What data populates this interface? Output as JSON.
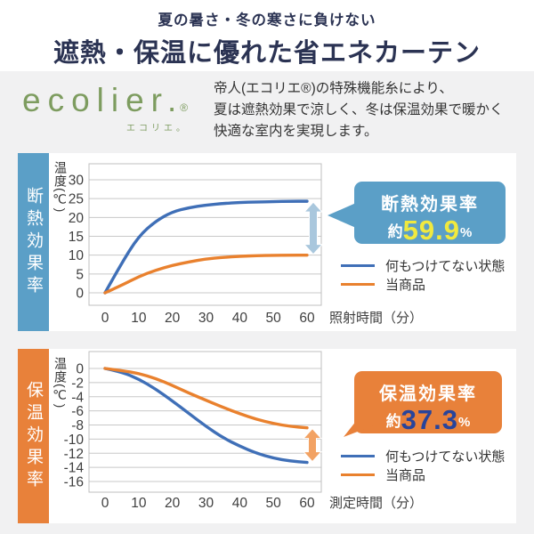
{
  "header": {
    "subtitle": "夏の暑さ・冬の寒さに負けない",
    "title": "遮熱・保温に優れた省エネカーテン"
  },
  "intro": {
    "logo_text": "ecolier.",
    "logo_reg": "®",
    "logo_sub": "エコリエ。",
    "description_lines": [
      "帝人(エコリエ®)の特殊機能糸により、",
      "夏は遮熱効果で涼しく、冬は保温効果で暖かく",
      "快適な室内を実現します。"
    ]
  },
  "insulation": {
    "banner": "断熱効果率",
    "callout": {
      "title": "断熱効果率",
      "prefix": "約",
      "value": "59.9",
      "unit": "%"
    }
  },
  "retention": {
    "banner": "保温効果率",
    "callout": {
      "title": "保温効果率",
      "prefix": "約",
      "value": "37.3",
      "unit": "%"
    }
  },
  "colors": {
    "page_bg": "#f1f1f2",
    "panel_bg": "#ffffff",
    "title_navy": "#2b3353",
    "text": "#333333",
    "logo_green": "#7d9c5f",
    "banner_blue": "#5b9fc7",
    "banner_orange": "#e8813a",
    "line_blue": "#3f6fb7",
    "line_orange": "#e9812e",
    "arrow_blue": "#a9c7dd",
    "arrow_orange": "#f2a263",
    "value_yellow": "#f0e93f",
    "value_navy": "#27449b",
    "grid": "#c8c8c8",
    "axis_text": "#3f3f3f"
  },
  "chart_data": [
    {
      "type": "line",
      "title": "断熱効果率",
      "xlabel": "照射時間（分）",
      "ylabel": "温度(℃)",
      "x": [
        0,
        5,
        10,
        15,
        20,
        25,
        30,
        35,
        40,
        45,
        50,
        55,
        60
      ],
      "xticks": [
        0,
        10,
        20,
        30,
        40,
        50,
        60
      ],
      "yticks": [
        30,
        25,
        20,
        15,
        10,
        5,
        0
      ],
      "ylim": [
        0,
        30
      ],
      "grid": true,
      "legend_position": "right-below-callout",
      "series": [
        {
          "name": "何もつけてない状態",
          "color": "#3f6fb7",
          "values": [
            0,
            8,
            15,
            19,
            21.5,
            22.6,
            23.3,
            23.7,
            24,
            24.1,
            24.2,
            24.3,
            24.3
          ]
        },
        {
          "name": "当商品",
          "color": "#e9812e",
          "values": [
            0,
            2,
            4.3,
            6,
            7.3,
            8.2,
            9,
            9.4,
            9.7,
            9.85,
            9.95,
            10,
            10
          ]
        }
      ],
      "gap_arrow": {
        "at_x": 60,
        "between_series": [
          0,
          1
        ],
        "color": "#a9c7dd"
      }
    },
    {
      "type": "line",
      "title": "保温効果率",
      "xlabel": "測定時間（分）",
      "ylabel": "温度(℃)",
      "x": [
        0,
        5,
        10,
        15,
        20,
        25,
        30,
        35,
        40,
        45,
        50,
        55,
        60
      ],
      "xticks": [
        0,
        10,
        20,
        30,
        40,
        50,
        60
      ],
      "yticks": [
        0,
        -2,
        -4,
        -6,
        -8,
        -10,
        -12,
        -14,
        -16
      ],
      "ylim": [
        -16,
        0
      ],
      "grid": true,
      "legend_position": "right-below-callout",
      "series": [
        {
          "name": "何もつけてない状態",
          "color": "#3f6fb7",
          "values": [
            0,
            -0.5,
            -1.5,
            -2.9,
            -4.6,
            -6.4,
            -8.2,
            -9.8,
            -11,
            -12,
            -12.7,
            -13.1,
            -13.3
          ]
        },
        {
          "name": "当商品",
          "color": "#e9812e",
          "values": [
            0,
            -0.3,
            -0.7,
            -1.4,
            -2.4,
            -3.5,
            -4.5,
            -5.5,
            -6.4,
            -7.2,
            -7.8,
            -8.2,
            -8.4
          ]
        }
      ],
      "gap_arrow": {
        "at_x": 60,
        "between_series": [
          1,
          0
        ],
        "color": "#f2a263"
      }
    }
  ]
}
